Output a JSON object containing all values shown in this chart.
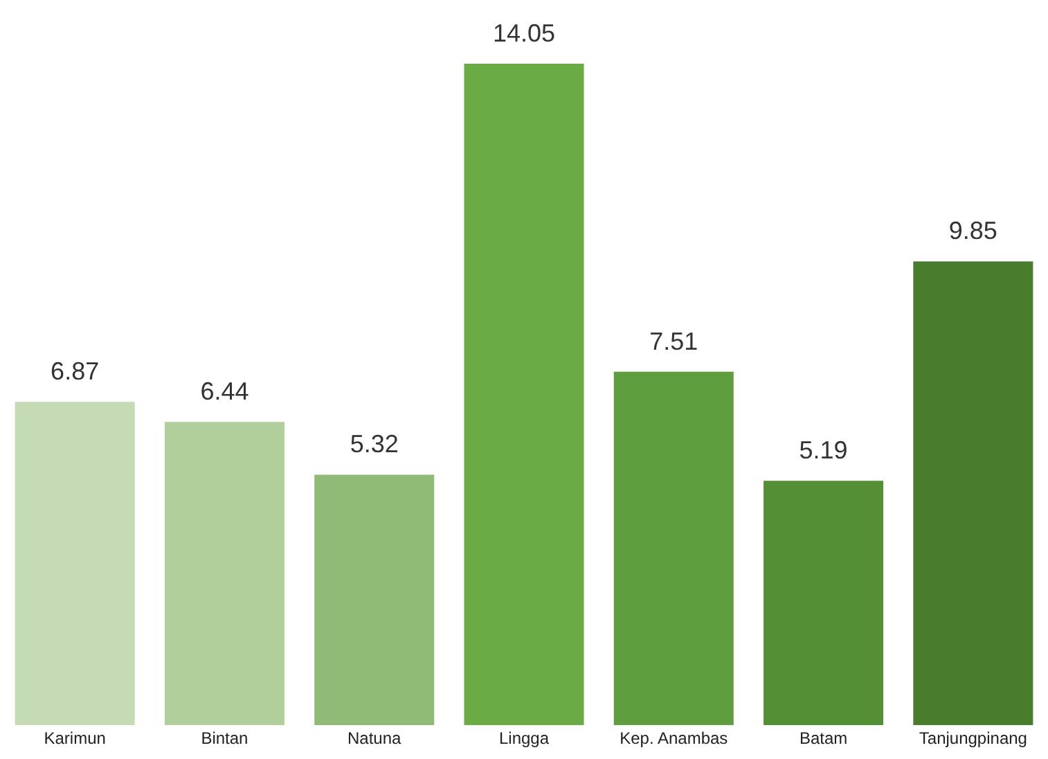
{
  "chart_data": {
    "type": "bar",
    "categories": [
      "Karimun",
      "Bintan",
      "Natuna",
      "Lingga",
      "Kep. Anambas",
      "Batam",
      "Tanjungpinang"
    ],
    "values": [
      6.87,
      6.44,
      5.32,
      14.05,
      7.51,
      5.19,
      9.85
    ],
    "colors": [
      "#c5dbb5",
      "#b0cf9b",
      "#90bb76",
      "#6aab45",
      "#5f9e3e",
      "#548f36",
      "#4a7c2e"
    ],
    "data_labels": true,
    "grid": false,
    "legend": false
  }
}
